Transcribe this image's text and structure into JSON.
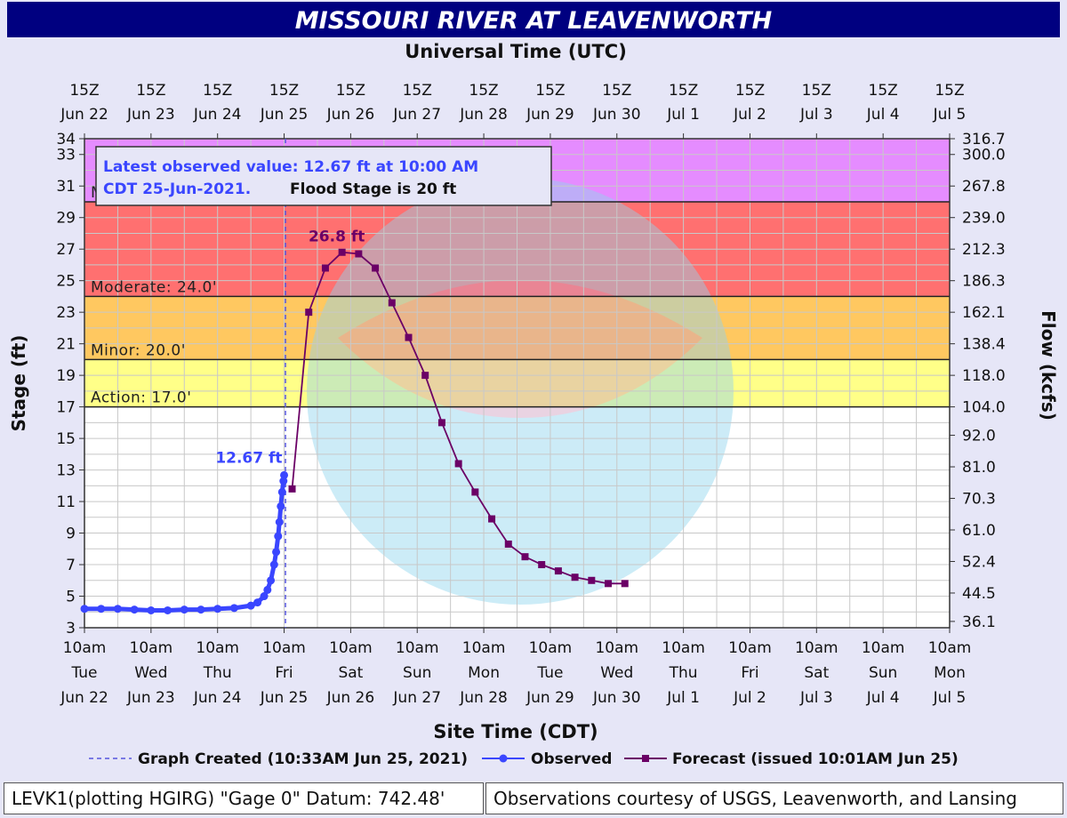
{
  "chart_data": {
    "type": "line",
    "title": "MISSOURI RIVER AT LEAVENWORTH",
    "top_axis_title": "Universal Time (UTC)",
    "bottom_axis_title": "Site Time (CDT)",
    "ylabel_left": "Stage (ft)",
    "ylabel_right": "Flow (kcfs)",
    "ylim": [
      3,
      34
    ],
    "xlim_days": [
      0,
      13
    ],
    "left_ticks": [
      3,
      5,
      7,
      9,
      11,
      13,
      15,
      17,
      19,
      21,
      23,
      25,
      27,
      29,
      31,
      33,
      34
    ],
    "right_ticks": [
      {
        "stage": 3.4,
        "label": "36.1"
      },
      {
        "stage": 5.2,
        "label": "44.5"
      },
      {
        "stage": 7.2,
        "label": "52.4"
      },
      {
        "stage": 9.2,
        "label": "61.0"
      },
      {
        "stage": 11.2,
        "label": "70.3"
      },
      {
        "stage": 13.2,
        "label": "81.0"
      },
      {
        "stage": 15.2,
        "label": "92.0"
      },
      {
        "stage": 17.0,
        "label": "104.0"
      },
      {
        "stage": 19.0,
        "label": "118.0"
      },
      {
        "stage": 21.0,
        "label": "138.4"
      },
      {
        "stage": 23.0,
        "label": "162.1"
      },
      {
        "stage": 25.0,
        "label": "186.3"
      },
      {
        "stage": 27.0,
        "label": "212.3"
      },
      {
        "stage": 29.0,
        "label": "239.0"
      },
      {
        "stage": 31.0,
        "label": "267.8"
      },
      {
        "stage": 33.0,
        "label": "300.0"
      },
      {
        "stage": 34.0,
        "label": "316.7"
      }
    ],
    "top_ticks": [
      [
        "15Z",
        "Jun 22"
      ],
      [
        "15Z",
        "Jun 23"
      ],
      [
        "15Z",
        "Jun 24"
      ],
      [
        "15Z",
        "Jun 25"
      ],
      [
        "15Z",
        "Jun 26"
      ],
      [
        "15Z",
        "Jun 27"
      ],
      [
        "15Z",
        "Jun 28"
      ],
      [
        "15Z",
        "Jun 29"
      ],
      [
        "15Z",
        "Jun 30"
      ],
      [
        "15Z",
        "Jul 1"
      ],
      [
        "15Z",
        "Jul 2"
      ],
      [
        "15Z",
        "Jul 3"
      ],
      [
        "15Z",
        "Jul 4"
      ],
      [
        "15Z",
        "Jul 5"
      ]
    ],
    "bottom_ticks": [
      [
        "10am",
        "Tue",
        "Jun 22"
      ],
      [
        "10am",
        "Wed",
        "Jun 23"
      ],
      [
        "10am",
        "Thu",
        "Jun 24"
      ],
      [
        "10am",
        "Fri",
        "Jun 25"
      ],
      [
        "10am",
        "Sat",
        "Jun 26"
      ],
      [
        "10am",
        "Sun",
        "Jun 27"
      ],
      [
        "10am",
        "Mon",
        "Jun 28"
      ],
      [
        "10am",
        "Tue",
        "Jun 29"
      ],
      [
        "10am",
        "Wed",
        "Jun 30"
      ],
      [
        "10am",
        "Thu",
        "Jul 1"
      ],
      [
        "10am",
        "Fri",
        "Jul 2"
      ],
      [
        "10am",
        "Sat",
        "Jul 3"
      ],
      [
        "10am",
        "Sun",
        "Jul 4"
      ],
      [
        "10am",
        "Mon",
        "Jul 5"
      ]
    ],
    "flood_bands": [
      {
        "name": "Action",
        "from": 17,
        "to": 20,
        "color": "#ffff88"
      },
      {
        "name": "Minor",
        "from": 20,
        "to": 24,
        "color": "#ffc860"
      },
      {
        "name": "Moderate",
        "from": 24,
        "to": 30,
        "color": "#ff7070"
      },
      {
        "name": "Major",
        "from": 30,
        "to": 34,
        "color": "#e58cff"
      }
    ],
    "stage_lines": [
      {
        "label": "Action: 17.0'",
        "value": 17
      },
      {
        "label": "Minor: 20.0'",
        "value": 20
      },
      {
        "label": "Moderate: 24.0'",
        "value": 24
      },
      {
        "label": "Major: 30.0'",
        "value": 30
      }
    ],
    "graph_created_day": 3.02,
    "series": [
      {
        "name": "Observed",
        "color": "#3a46ff",
        "x_days": [
          0,
          0.25,
          0.5,
          0.75,
          1.0,
          1.25,
          1.5,
          1.75,
          2.0,
          2.25,
          2.5,
          2.6,
          2.7,
          2.75,
          2.8,
          2.85,
          2.88,
          2.91,
          2.93,
          2.95,
          2.97,
          2.99,
          3.0
        ],
        "values": [
          4.2,
          4.2,
          4.2,
          4.15,
          4.1,
          4.1,
          4.15,
          4.15,
          4.2,
          4.25,
          4.4,
          4.6,
          5.0,
          5.4,
          6.0,
          7.0,
          7.8,
          8.8,
          9.7,
          10.7,
          11.6,
          12.3,
          12.67
        ]
      },
      {
        "name": "Forecast",
        "color": "#6b0066",
        "x_days": [
          3.12,
          3.37,
          3.62,
          3.87,
          4.12,
          4.37,
          4.62,
          4.87,
          5.12,
          5.37,
          5.62,
          5.87,
          6.12,
          6.37,
          6.62,
          6.87,
          7.12,
          7.37,
          7.62,
          7.87,
          8.12
        ],
        "values": [
          11.8,
          23.0,
          25.8,
          26.8,
          26.7,
          25.8,
          23.6,
          21.4,
          19.0,
          16.0,
          13.4,
          11.6,
          9.9,
          8.3,
          7.5,
          7.0,
          6.6,
          6.2,
          6.0,
          5.8,
          5.8
        ]
      }
    ],
    "peak_label": "26.8 ft",
    "observed_label": "12.67 ft",
    "info_box": {
      "line1": "Latest observed value: 12.67 ft at 10:00 AM",
      "line2_a": "CDT 25-Jun-2021.",
      "line2_b": "Flood Stage is 20 ft"
    },
    "legend": {
      "created": "Graph Created (10:33AM Jun 25, 2021)",
      "observed": "Observed",
      "forecast": "Forecast (issued 10:01AM Jun 25)"
    }
  },
  "footer": {
    "left": "LEVK1(plotting HGIRG) \"Gage 0\" Datum: 742.48'",
    "right": "Observations courtesy of USGS, Leavenworth, and Lansing"
  },
  "colors": {
    "title_bg": "#000080",
    "frame_bg": "#e6e6f7",
    "grid": "#c8c8c8",
    "observed": "#3a46ff",
    "forecast": "#6b0066"
  }
}
